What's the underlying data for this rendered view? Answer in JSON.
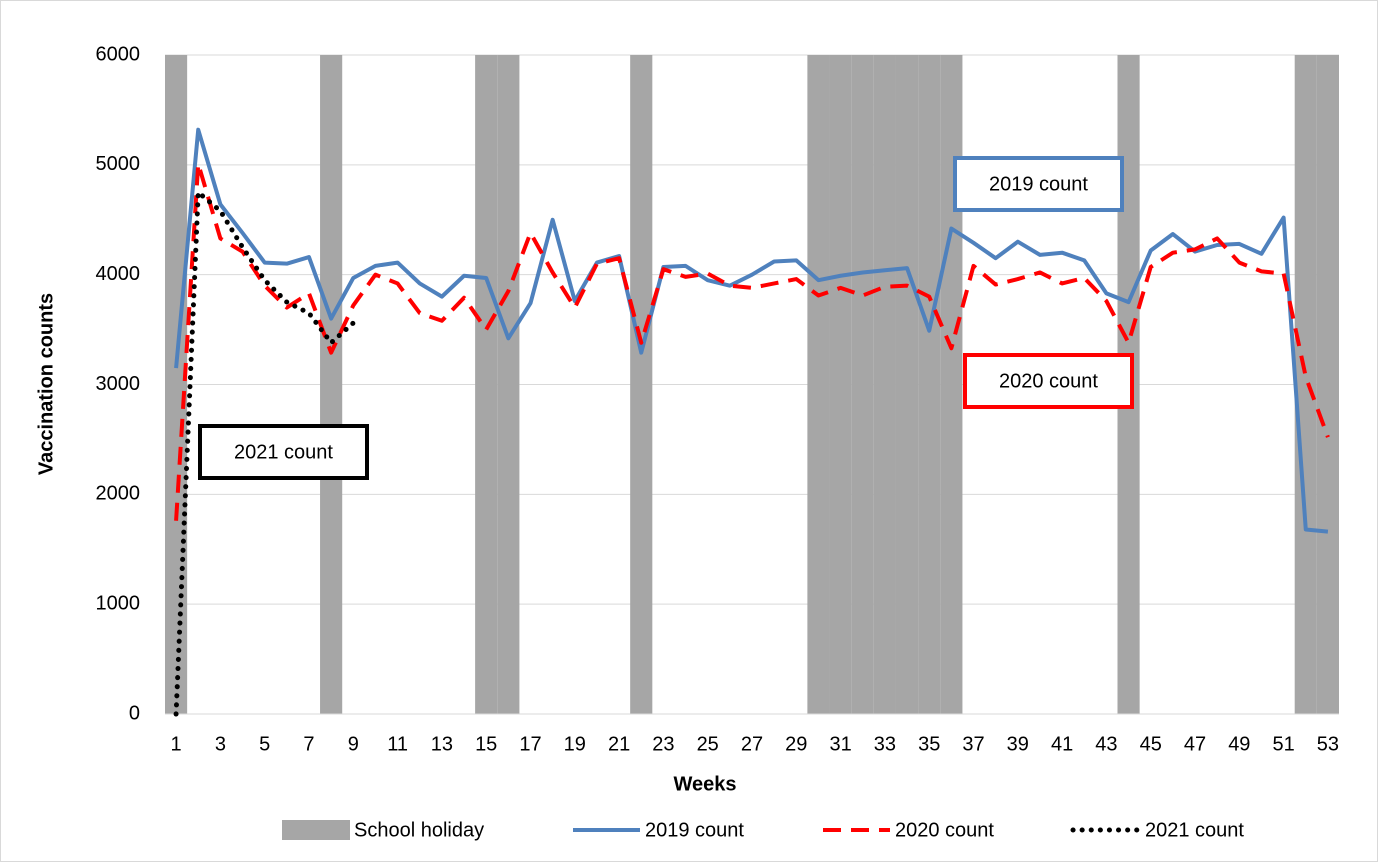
{
  "chart_data": {
    "type": "line",
    "x_label": "Weeks",
    "y_label": "Vaccination counts",
    "x": [
      1,
      2,
      3,
      4,
      5,
      6,
      7,
      8,
      9,
      10,
      11,
      12,
      13,
      14,
      15,
      16,
      17,
      18,
      19,
      20,
      21,
      22,
      23,
      24,
      25,
      26,
      27,
      28,
      29,
      30,
      31,
      32,
      33,
      34,
      35,
      36,
      37,
      38,
      39,
      40,
      41,
      42,
      43,
      44,
      45,
      46,
      47,
      48,
      49,
      50,
      51,
      52,
      53
    ],
    "xlim": [
      0.5,
      53.5
    ],
    "xticks": [
      1,
      3,
      5,
      7,
      9,
      11,
      13,
      15,
      17,
      19,
      21,
      23,
      25,
      27,
      29,
      31,
      33,
      35,
      37,
      39,
      41,
      43,
      45,
      47,
      49,
      51,
      53
    ],
    "ylim": [
      0,
      6000
    ],
    "yticks": [
      0,
      1000,
      2000,
      3000,
      4000,
      5000,
      6000
    ],
    "grid": true,
    "series": [
      {
        "name": "School holiday",
        "type": "bar",
        "color": "#a6a6a6",
        "values": [
          6000,
          null,
          null,
          null,
          null,
          null,
          null,
          6000,
          null,
          null,
          null,
          null,
          null,
          null,
          6000,
          6000,
          null,
          null,
          null,
          null,
          null,
          6000,
          null,
          null,
          null,
          null,
          null,
          null,
          null,
          6000,
          6000,
          6000,
          6000,
          6000,
          6000,
          6000,
          null,
          null,
          null,
          null,
          null,
          null,
          null,
          6000,
          null,
          null,
          null,
          null,
          null,
          null,
          null,
          6000,
          6000
        ]
      },
      {
        "name": "2019 count",
        "type": "line",
        "style": "solid",
        "color": "#4f81bd",
        "values": [
          3150,
          5320,
          4640,
          4380,
          4110,
          4100,
          4160,
          3600,
          3970,
          4080,
          4110,
          3920,
          3800,
          3990,
          3970,
          3420,
          3740,
          4500,
          3760,
          4110,
          4170,
          3290,
          4070,
          4080,
          3950,
          3900,
          4000,
          4120,
          4130,
          3950,
          3990,
          4020,
          4040,
          4060,
          3490,
          4420,
          4290,
          4150,
          4300,
          4180,
          4200,
          4130,
          3830,
          3750,
          4220,
          4370,
          4210,
          4270,
          4280,
          4190,
          4520,
          1680,
          1660
        ]
      },
      {
        "name": "2020 count",
        "type": "line",
        "style": "dashed",
        "color": "#ff0000",
        "values": [
          1760,
          5010,
          4330,
          4210,
          3900,
          3700,
          3830,
          3290,
          3720,
          4000,
          3920,
          3650,
          3580,
          3790,
          3500,
          3850,
          4380,
          4020,
          3700,
          4100,
          4150,
          3380,
          4050,
          3980,
          4010,
          3900,
          3880,
          3920,
          3960,
          3810,
          3880,
          3810,
          3890,
          3900,
          3800,
          3330,
          4080,
          3910,
          3960,
          4020,
          3920,
          3970,
          3760,
          3380,
          4070,
          4200,
          4230,
          4330,
          4110,
          4030,
          4010,
          3070,
          2520
        ]
      },
      {
        "name": "2021 count",
        "type": "line",
        "style": "dotted",
        "color": "#000000",
        "values": [
          0,
          4750,
          4580,
          4250,
          3950,
          3750,
          3650,
          3380,
          3560,
          null,
          null,
          null,
          null,
          null,
          null,
          null,
          null,
          null,
          null,
          null,
          null,
          null,
          null,
          null,
          null,
          null,
          null,
          null,
          null,
          null,
          null,
          null,
          null,
          null,
          null,
          null,
          null,
          null,
          null,
          null,
          null,
          null,
          null,
          null,
          null,
          null,
          null,
          null,
          null,
          null,
          null,
          null,
          null
        ]
      }
    ],
    "annotations": [
      {
        "text": "2019 count",
        "color": "#4f81bd"
      },
      {
        "text": "2020 count",
        "color": "#ff0000"
      },
      {
        "text": "2021 count",
        "color": "#000000"
      }
    ],
    "legend": "bottom"
  }
}
